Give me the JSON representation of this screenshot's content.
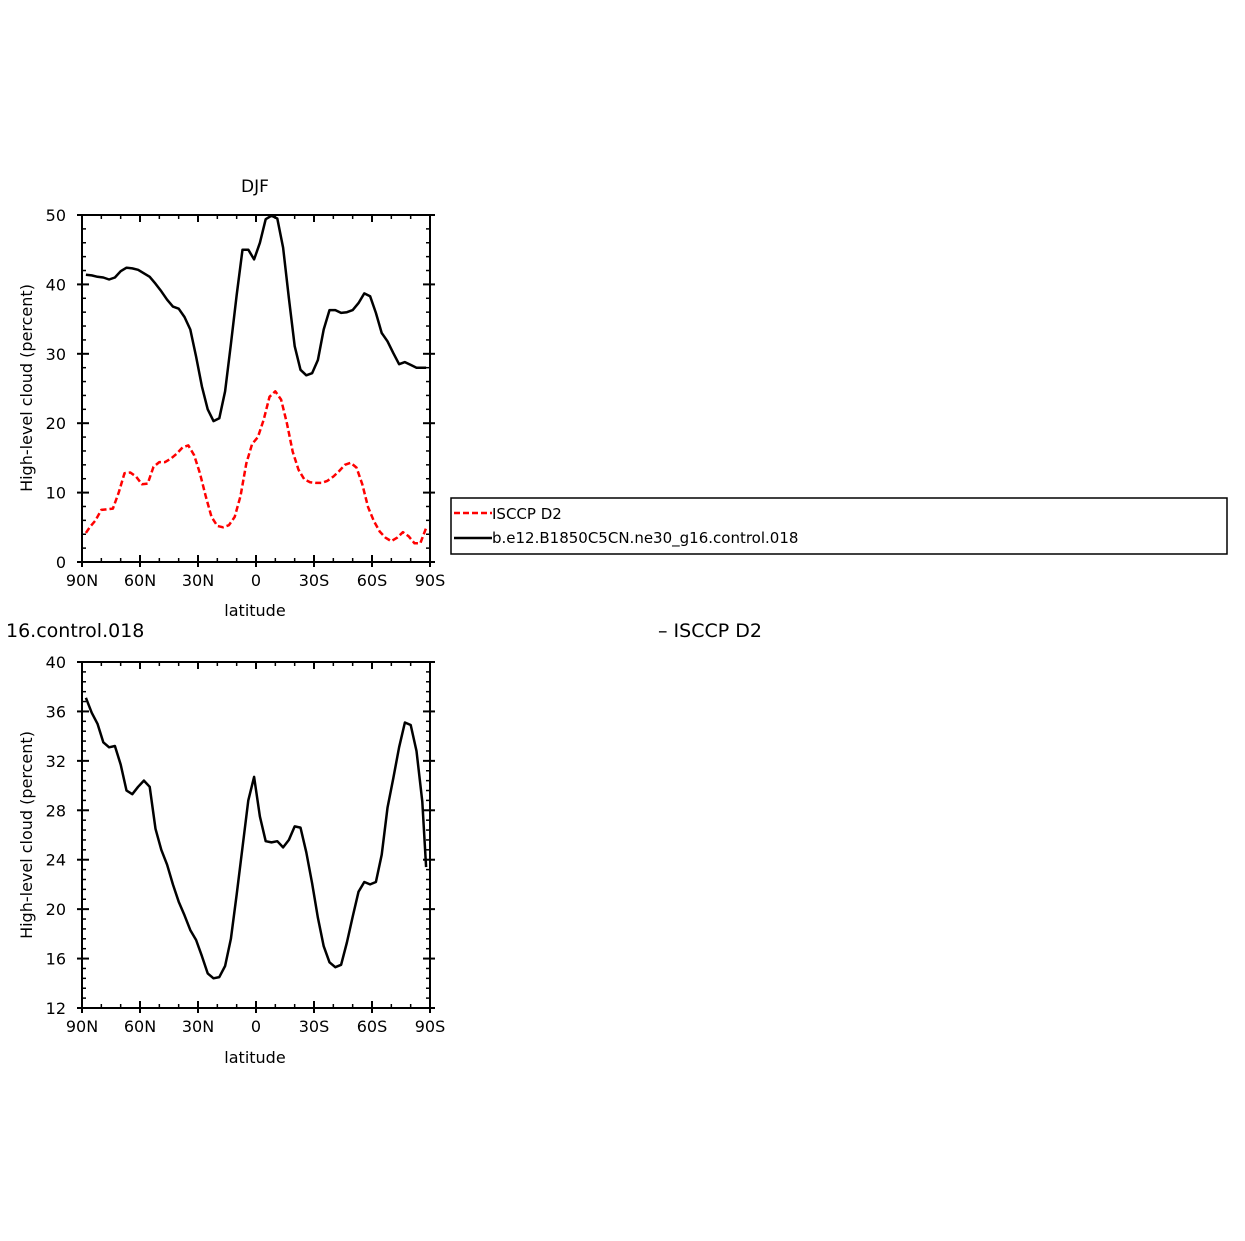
{
  "chart_data": [
    {
      "type": "line",
      "title": "DJF",
      "xlabel": "latitude",
      "ylabel": "High-level cloud (percent)",
      "xlim": [
        90,
        -90
      ],
      "ylim": [
        0,
        50
      ],
      "xticks": [
        90,
        60,
        30,
        0,
        -30,
        -60,
        -90
      ],
      "xtick_labels": [
        "90N",
        "60N",
        "30N",
        "0",
        "30S",
        "60S",
        "90S"
      ],
      "yticks": [
        0,
        10,
        20,
        30,
        40,
        50
      ],
      "ytick_labels": [
        "0",
        "10",
        "20",
        "30",
        "40",
        "50"
      ],
      "legend": {
        "placement": "right",
        "entries": [
          "ISCCP D2",
          "b.e12.B1850C5CN.ne30_g16.control.018"
        ]
      },
      "series": [
        {
          "name": "ISCCP D2",
          "color": "#ff0000",
          "dash": "dashed",
          "x": [
            88,
            86,
            83,
            80,
            77,
            74,
            71,
            68,
            65,
            62,
            59,
            56,
            53,
            50,
            47,
            44,
            41,
            38,
            35,
            32,
            29,
            26,
            23,
            20,
            17,
            14,
            11,
            8,
            5,
            2,
            -1,
            -4,
            -7,
            -10,
            -13,
            -16,
            -19,
            -22,
            -25,
            -28,
            -31,
            -34,
            -37,
            -40,
            -43,
            -46,
            -49,
            -52,
            -55,
            -58,
            -61,
            -64,
            -67,
            -70,
            -73,
            -76,
            -79,
            -82,
            -85,
            -88
          ],
          "y": [
            4.2,
            5.0,
            6.0,
            7.5,
            7.6,
            7.7,
            10.0,
            12.8,
            12.9,
            12.3,
            11.2,
            11.3,
            13.7,
            14.4,
            14.4,
            14.9,
            15.6,
            16.5,
            16.8,
            15.4,
            12.8,
            9.5,
            6.5,
            5.2,
            5.0,
            5.3,
            6.5,
            9.5,
            14.2,
            17.0,
            18.0,
            20.5,
            23.8,
            24.6,
            23.4,
            20.0,
            15.9,
            13.3,
            11.9,
            11.5,
            11.4,
            11.4,
            11.7,
            12.3,
            13.1,
            14.0,
            14.3,
            13.6,
            11.2,
            7.9,
            5.9,
            4.4,
            3.5,
            3.0,
            3.5,
            4.3,
            3.7,
            2.7,
            2.7,
            4.9
          ]
        },
        {
          "name": "b.e12.B1850C5CN.ne30_g16.control.018",
          "color": "#000000",
          "dash": "solid",
          "x": [
            88,
            85,
            82,
            79,
            76,
            73,
            70,
            67,
            64,
            61,
            58,
            55,
            52,
            49,
            46,
            43,
            40,
            37,
            34,
            31,
            28,
            25,
            22,
            19,
            16,
            13,
            10,
            7,
            4,
            1,
            -2,
            -5,
            -8,
            -11,
            -14,
            -17,
            -20,
            -23,
            -26,
            -29,
            -32,
            -35,
            -38,
            -41,
            -44,
            -47,
            -50,
            -53,
            -56,
            -59,
            -62,
            -65,
            -68,
            -71,
            -74,
            -77,
            -80,
            -83,
            -86,
            -88
          ],
          "y": [
            41.4,
            41.3,
            41.1,
            41.0,
            40.7,
            41.0,
            41.9,
            42.4,
            42.3,
            42.1,
            41.6,
            41.1,
            40.1,
            39.0,
            37.8,
            36.8,
            36.5,
            35.3,
            33.5,
            29.6,
            25.3,
            22.0,
            20.3,
            20.7,
            24.6,
            31.4,
            38.5,
            45.0,
            45.0,
            43.6,
            46.0,
            49.4,
            49.9,
            49.5,
            45.3,
            38.0,
            31.1,
            27.7,
            26.9,
            27.2,
            29.1,
            33.5,
            36.3,
            36.3,
            35.9,
            36.0,
            36.3,
            37.3,
            38.7,
            38.3,
            35.9,
            33.0,
            31.8,
            30.1,
            28.5,
            28.8,
            28.4,
            28.0,
            28.0,
            28.0
          ]
        }
      ]
    },
    {
      "type": "line",
      "title": "16.control.018",
      "subtitle": "– ISCCP D2",
      "xlabel": "latitude",
      "ylabel": "High-level cloud (percent)",
      "xlim": [
        90,
        -90
      ],
      "ylim": [
        12,
        40
      ],
      "xticks": [
        90,
        60,
        30,
        0,
        -30,
        -60,
        -90
      ],
      "xtick_labels": [
        "90N",
        "60N",
        "30N",
        "0",
        "30S",
        "60S",
        "90S"
      ],
      "yticks": [
        12,
        16,
        20,
        24,
        28,
        32,
        36,
        40
      ],
      "ytick_labels": [
        "12",
        "16",
        "20",
        "24",
        "28",
        "32",
        "36",
        "40"
      ],
      "series": [
        {
          "color": "#000000",
          "dash": "solid",
          "x": [
            88,
            85,
            82,
            79,
            76,
            73,
            70,
            67,
            64,
            61,
            58,
            55,
            52,
            49,
            46,
            43,
            40,
            37,
            34,
            31,
            28,
            25,
            22,
            19,
            16,
            13,
            10,
            7,
            4,
            1,
            -2,
            -5,
            -8,
            -11,
            -14,
            -17,
            -20,
            -23,
            -26,
            -29,
            -32,
            -35,
            -38,
            -41,
            -44,
            -47,
            -50,
            -53,
            -56,
            -59,
            -62,
            -65,
            -68,
            -71,
            -74,
            -77,
            -80,
            -83,
            -86,
            -88
          ],
          "y": [
            37.1,
            35.9,
            35.0,
            33.5,
            33.1,
            33.2,
            31.7,
            29.6,
            29.3,
            29.9,
            30.4,
            29.9,
            26.5,
            24.8,
            23.6,
            22.0,
            20.6,
            19.5,
            18.3,
            17.5,
            16.2,
            14.8,
            14.4,
            14.5,
            15.4,
            17.6,
            21.2,
            25.0,
            28.8,
            30.7,
            27.5,
            25.5,
            25.4,
            25.5,
            25.0,
            25.6,
            26.7,
            26.6,
            24.6,
            22.1,
            19.3,
            17.0,
            15.7,
            15.3,
            15.5,
            17.3,
            19.4,
            21.4,
            22.2,
            22.0,
            22.2,
            24.4,
            28.2,
            30.6,
            33.1,
            35.1,
            34.9,
            32.8,
            28.7,
            23.4
          ]
        }
      ]
    }
  ]
}
